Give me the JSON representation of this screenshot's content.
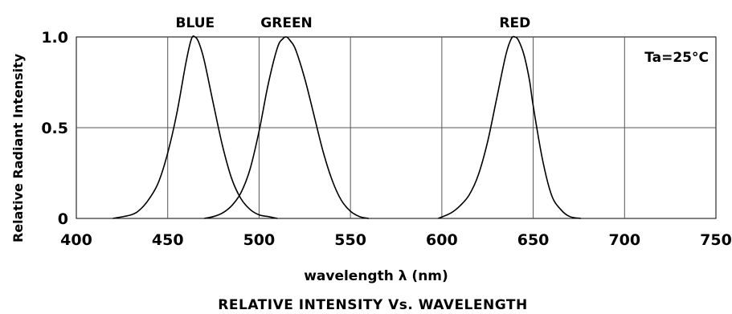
{
  "chart_data": {
    "type": "line",
    "title": "RELATIVE INTENSITY Vs. WAVELENGTH",
    "xlabel": "wavelength λ (nm)",
    "ylabel": "Relative Radiant Intensity",
    "xlim": [
      400,
      750
    ],
    "ylim": [
      0,
      1.0
    ],
    "x_ticks": [
      "400",
      "450",
      "500",
      "550",
      "600",
      "650",
      "700",
      "750"
    ],
    "y_ticks": [
      "0",
      "0.5",
      "1.0"
    ],
    "grid": true,
    "annotation": "Ta=25°C",
    "colors": {
      "line": "#000000",
      "grid": "#555555",
      "background": "#ffffff"
    },
    "series": [
      {
        "name": "BLUE",
        "x": [
          420,
          430,
          435,
          440,
          445,
          450,
          455,
          460,
          463,
          465,
          467,
          470,
          475,
          480,
          485,
          490,
          495,
          500,
          505,
          510
        ],
        "y": [
          0.0,
          0.02,
          0.05,
          0.11,
          0.2,
          0.36,
          0.58,
          0.86,
          0.99,
          1.0,
          0.97,
          0.87,
          0.63,
          0.4,
          0.22,
          0.11,
          0.05,
          0.02,
          0.01,
          0.0
        ]
      },
      {
        "name": "GREEN",
        "x": [
          470,
          475,
          480,
          485,
          490,
          495,
          500,
          505,
          510,
          513,
          515,
          517,
          520,
          525,
          530,
          535,
          540,
          545,
          550,
          555,
          560
        ],
        "y": [
          0.0,
          0.01,
          0.03,
          0.07,
          0.14,
          0.27,
          0.48,
          0.74,
          0.94,
          0.99,
          1.0,
          0.98,
          0.93,
          0.77,
          0.57,
          0.37,
          0.21,
          0.1,
          0.04,
          0.01,
          0.0
        ]
      },
      {
        "name": "RED",
        "x": [
          598,
          605,
          610,
          615,
          620,
          625,
          630,
          635,
          638,
          640,
          642,
          645,
          648,
          650,
          655,
          660,
          665,
          670,
          676
        ],
        "y": [
          0.0,
          0.03,
          0.07,
          0.13,
          0.24,
          0.42,
          0.66,
          0.9,
          0.99,
          1.0,
          0.98,
          0.9,
          0.76,
          0.62,
          0.33,
          0.13,
          0.05,
          0.01,
          0.0
        ]
      }
    ]
  }
}
